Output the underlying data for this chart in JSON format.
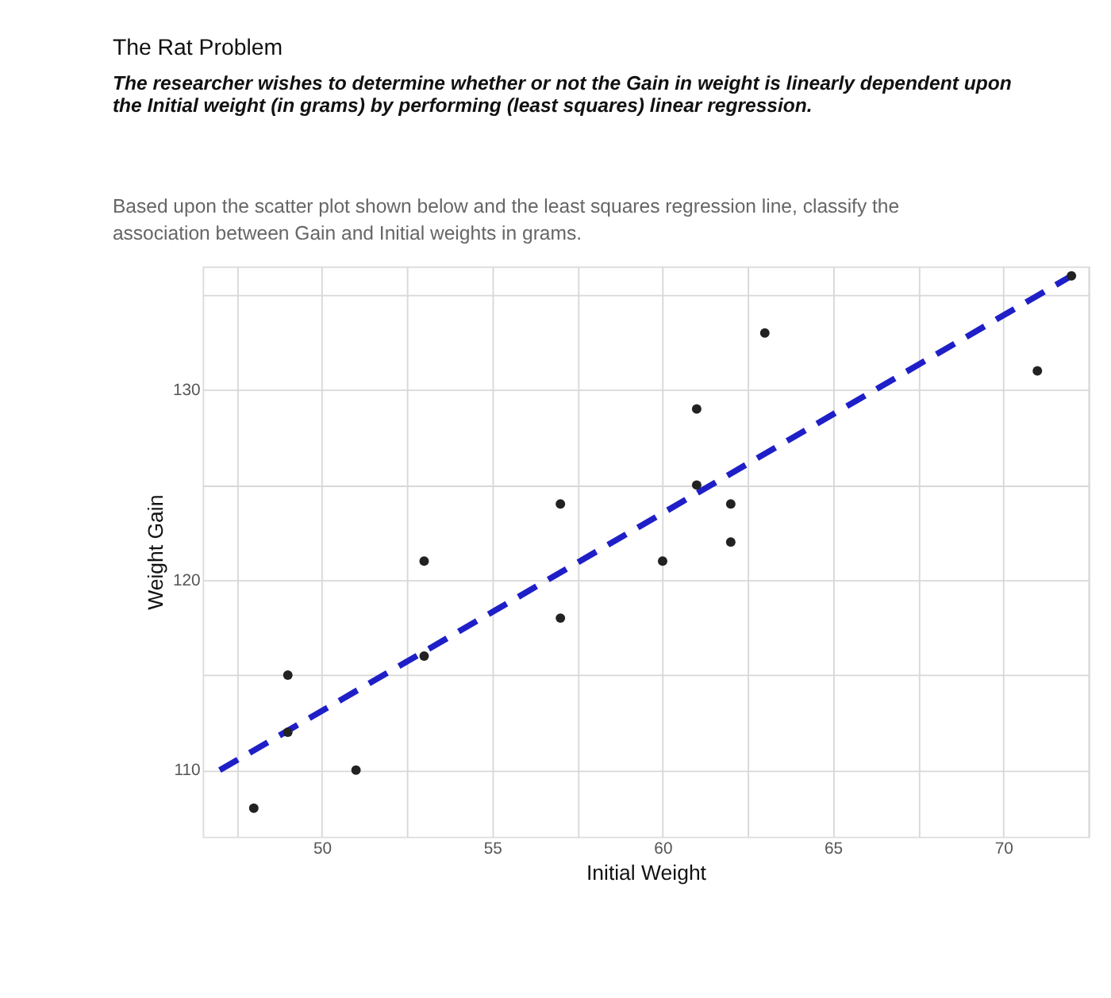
{
  "chart_data": {
    "type": "scatter",
    "title": "The Rat Problem",
    "subtitle": "The researcher wishes to determine whether or not the Gain in weight is linearly dependent upon the Initial weight (in grams) by performing (least squares) linear regression.",
    "annotations": [
      "Based upon the scatter plot shown below and the least squares regression line, classify the association between Gain and Initial weights in grams."
    ],
    "xlabel": "Initial Weight",
    "ylabel": "Weight Gain",
    "series": [
      {
        "color": "#222222",
        "marker": "circle",
        "x": [
          48,
          49,
          49,
          51,
          53,
          53,
          57,
          57,
          60,
          61,
          61,
          62,
          62,
          63,
          71,
          72
        ],
        "values": [
          108,
          115,
          112,
          110,
          121,
          116,
          124,
          118,
          121,
          129,
          125,
          124,
          122,
          133,
          131,
          136
        ]
      },
      {
        "type": "line",
        "color": "#1f1fc8",
        "line_style": "dashed",
        "x": [
          47,
          72
        ],
        "values": [
          110,
          136
        ]
      }
    ],
    "xlim": [
      46.5,
      72.5
    ],
    "ylim": [
      106.5,
      136.5
    ],
    "xticks": [
      {
        "value": 47.5,
        "label": null
      },
      50,
      {
        "value": 52.5,
        "label": null
      },
      55,
      {
        "value": 57.5,
        "label": null
      },
      60,
      {
        "value": 62.5,
        "label": null
      },
      65,
      {
        "value": 67.5,
        "label": null
      },
      70,
      {
        "value": 72.5,
        "label": null
      }
    ],
    "yticks": [
      110,
      {
        "value": 115,
        "label": null
      },
      120,
      {
        "value": 125,
        "label": null
      },
      130,
      {
        "value": 135,
        "label": null
      }
    ],
    "grid": true
  }
}
